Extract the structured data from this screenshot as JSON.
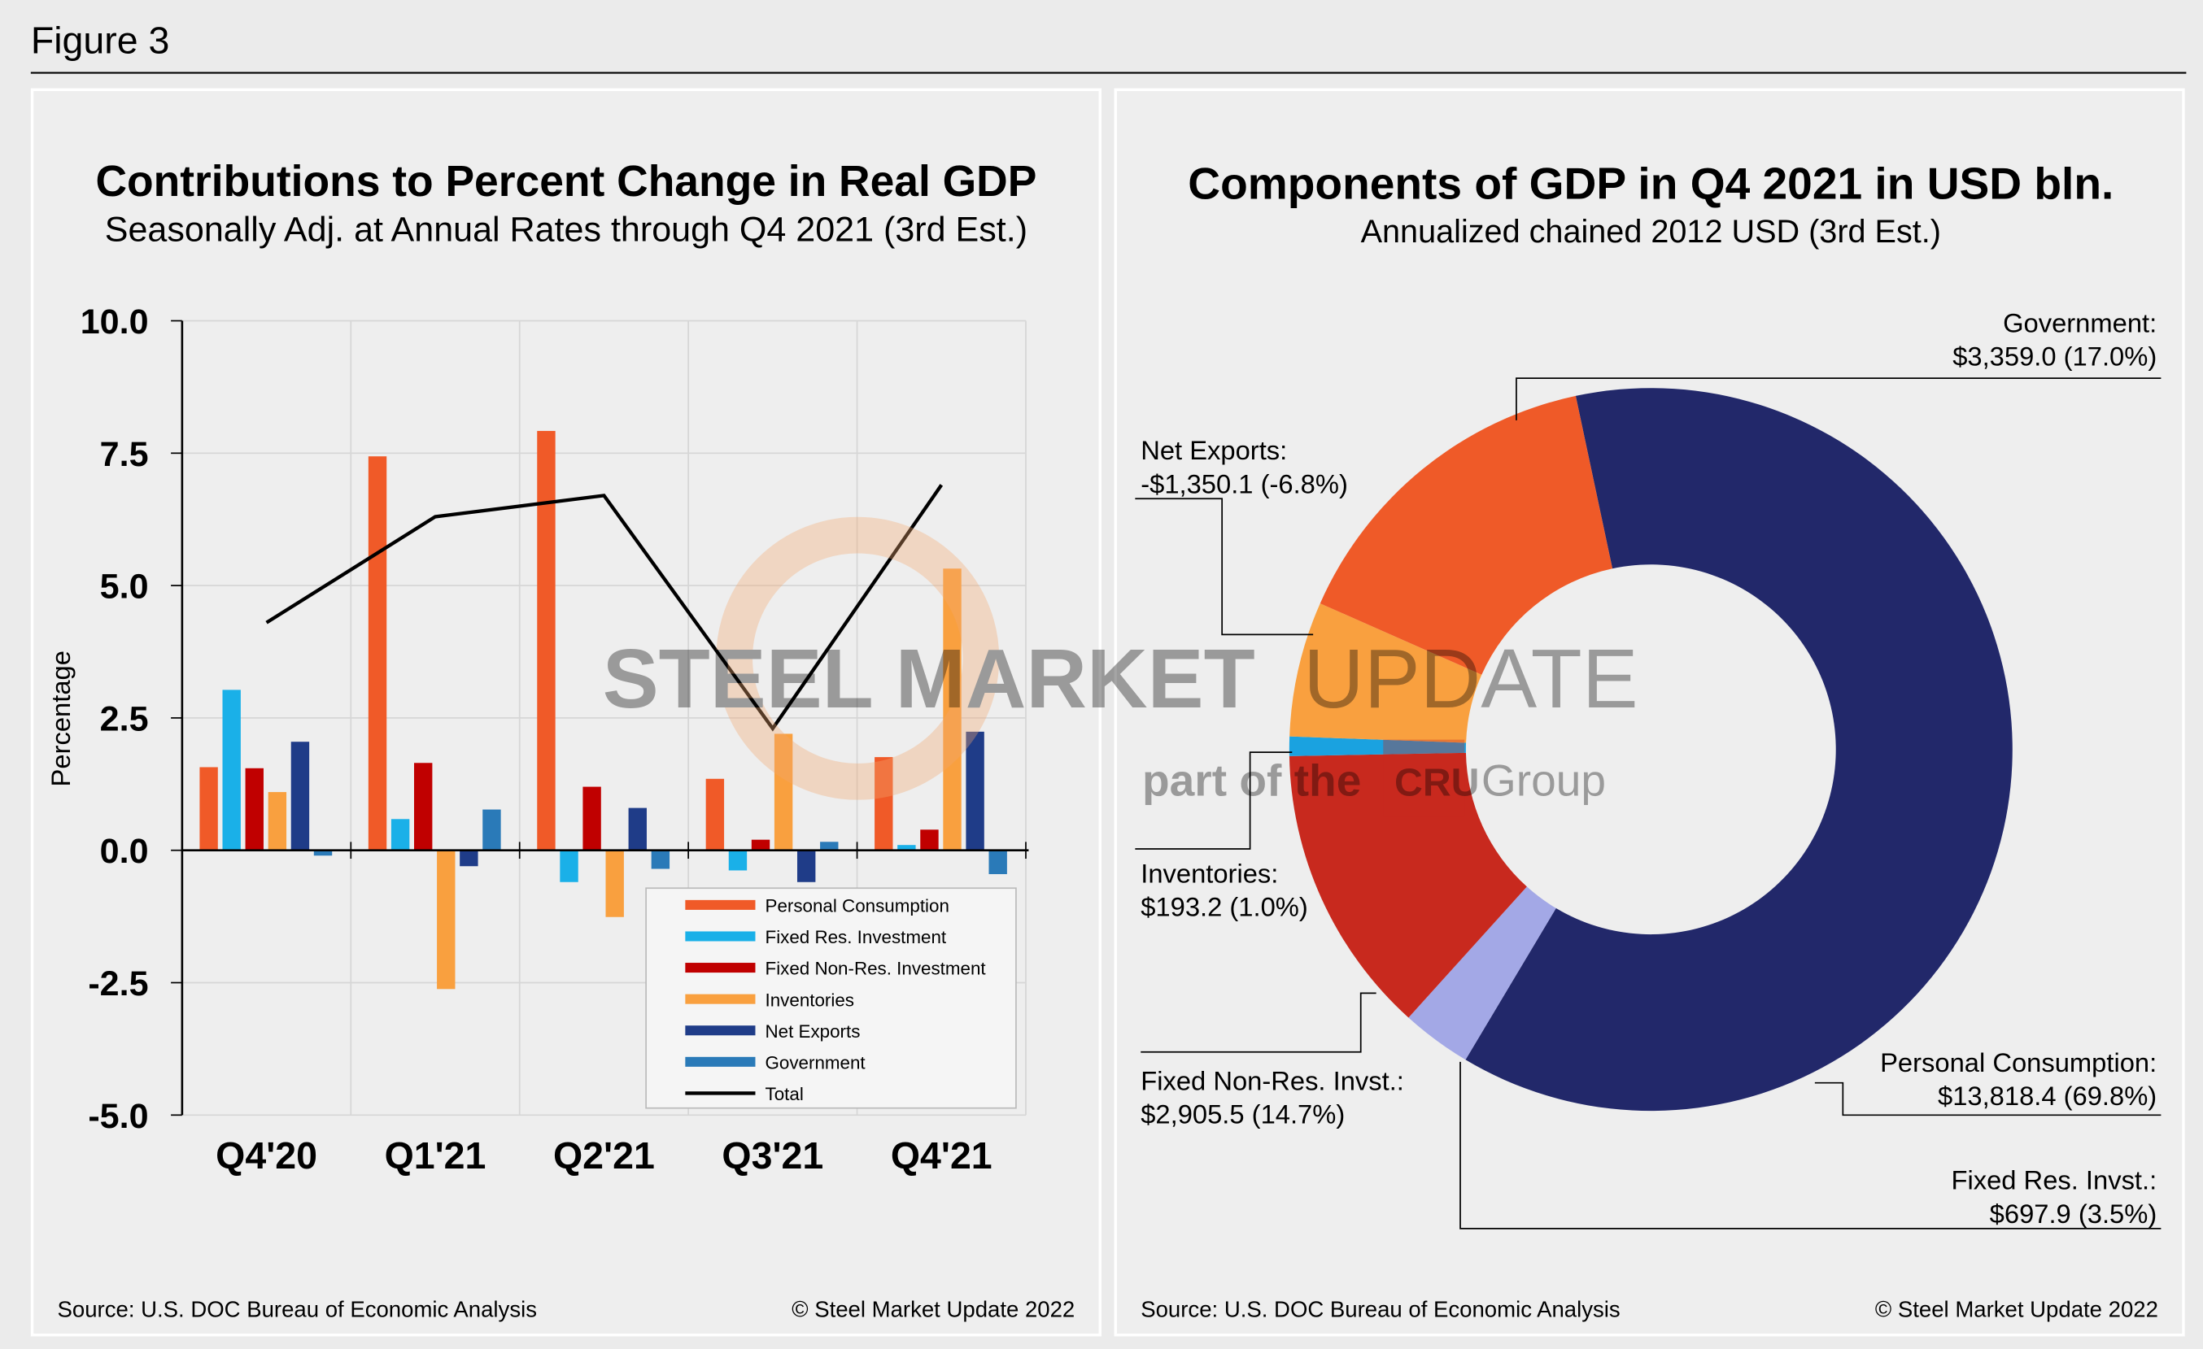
{
  "figure_title": "Figure 3",
  "watermark": {
    "brand": "STEEL MARKET",
    "brand2": "UPDATE",
    "part": "part of the",
    "logo": "CRU",
    "group": "Group"
  },
  "chart_data": [
    {
      "type": "bar",
      "title": "Contributions to Percent Change in Real GDP",
      "subtitle": "Seasonally Adj. at Annual Rates through Q4 2021 (3rd Est.)",
      "y_label": "Percentage",
      "source": "Source: U.S. DOC Bureau of Economic Analysis",
      "copyright": "© Steel Market Update 2022",
      "categories": [
        "Q4'20",
        "Q1'21",
        "Q2'21",
        "Q3'21",
        "Q4'21"
      ],
      "ylim": [
        -5,
        10
      ],
      "yticks": [
        {
          "value": -5,
          "label": "-5.0"
        },
        -2.5,
        {
          "value": 0,
          "label": "0.0"
        },
        2.5,
        {
          "value": 5,
          "label": "5.0"
        },
        7.5,
        {
          "value": 10,
          "label": "10.0"
        }
      ],
      "grid": true,
      "legend": "lower-right",
      "series": [
        {
          "name": "Personal Consumption",
          "color": "#f05a28",
          "values": [
            1.57,
            7.44,
            7.92,
            1.35,
            1.76
          ]
        },
        {
          "name": "Fixed Res. Investment",
          "color": "#1ab0e8",
          "values": [
            3.03,
            0.59,
            -0.6,
            -0.38,
            0.1
          ]
        },
        {
          "name": "Fixed Non-Res. Investment",
          "color": "#c00000",
          "values": [
            1.55,
            1.65,
            1.2,
            0.2,
            0.39
          ]
        },
        {
          "name": "Inventories",
          "color": "#f9a03f",
          "values": [
            1.1,
            -2.62,
            -1.26,
            2.2,
            5.32
          ]
        },
        {
          "name": "Net Exports",
          "color": "#1f3c88",
          "values": [
            2.05,
            -0.3,
            0.8,
            -0.6,
            2.24
          ]
        },
        {
          "name": "Government",
          "color": "#2a7ab8",
          "values": [
            -0.1,
            0.77,
            -0.35,
            0.16,
            -0.45
          ]
        },
        {
          "name": "Total",
          "color": "#000000",
          "type": "line",
          "values": [
            4.3,
            6.3,
            6.7,
            2.3,
            6.9
          ]
        }
      ]
    },
    {
      "type": "pie",
      "title": "Components of GDP in Q4 2021 in USD bln.",
      "subtitle": "Annualized chained 2012 USD (3rd Est.)",
      "source": "Source: U.S. DOC Bureau of Economic Analysis",
      "copyright": "© Steel Market Update 2022",
      "donut": true,
      "categories": [
        "Personal Consumption:",
        "Fixed Res. Invst.:",
        "Fixed Non-Res. Invst.:",
        "Inventories:",
        "Net Exports:",
        "Government:"
      ],
      "colors": [
        "#22286a",
        "#a3a8e6",
        "#c8291e",
        "#1aa2e0",
        "#f9a03f",
        "#ef5a28"
      ],
      "values": [
        13818.4,
        697.9,
        2905.5,
        193.2,
        -1350.1,
        3359.0
      ],
      "value_labels": [
        "$13,818.4 (69.8%)",
        "$697.9 (3.5%)",
        "$2,905.5 (14.7%)",
        "$193.2 (1.0%)",
        "-$1,350.1 (-6.8%)",
        "$3,359.0 (17.0%)"
      ]
    }
  ]
}
